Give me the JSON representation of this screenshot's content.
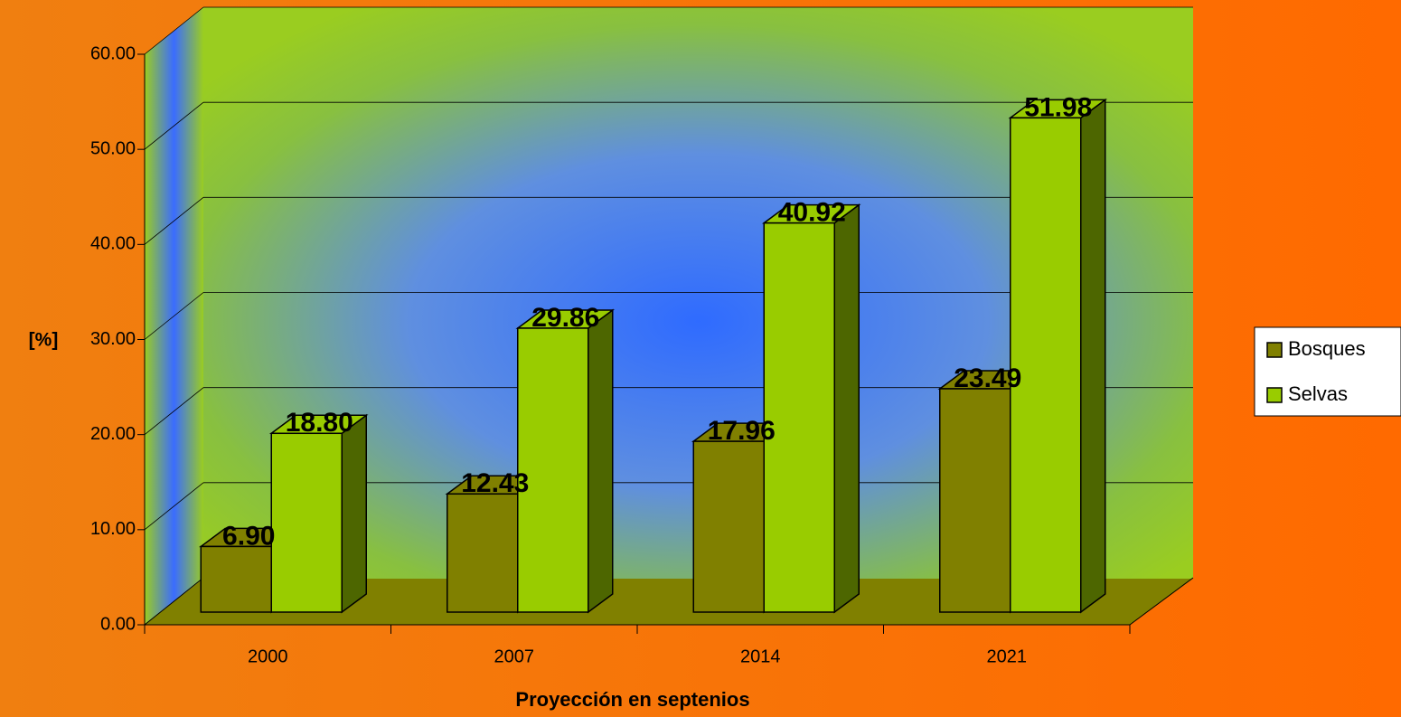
{
  "chart_data": {
    "type": "bar3d",
    "x_label": "Proyección en septenios",
    "y_label": "[%]",
    "categories": [
      "2000",
      "2007",
      "2014",
      "2021"
    ],
    "series": [
      {
        "name": "Bosques",
        "color": "#808000",
        "values": [
          6.9,
          12.43,
          17.96,
          23.49
        ],
        "value_labels": [
          "6.90",
          "12.43",
          "17.96",
          "23.49"
        ]
      },
      {
        "name": "Selvas",
        "color": "#99cc00",
        "values": [
          18.8,
          29.86,
          40.92,
          51.98
        ],
        "value_labels": [
          "18.80",
          "29.86",
          "40.92",
          "51.98"
        ]
      }
    ],
    "ylim": [
      0,
      60
    ],
    "yticks": [
      {
        "value": 0,
        "label": "0.00"
      },
      {
        "value": 10,
        "label": "10.00"
      },
      {
        "value": 20,
        "label": "20.00"
      },
      {
        "value": 30,
        "label": "30.00"
      },
      {
        "value": 40,
        "label": "40.00"
      },
      {
        "value": 50,
        "label": "50.00"
      },
      {
        "value": 60,
        "label": "60.00"
      }
    ],
    "grid": true,
    "legend": "right"
  }
}
